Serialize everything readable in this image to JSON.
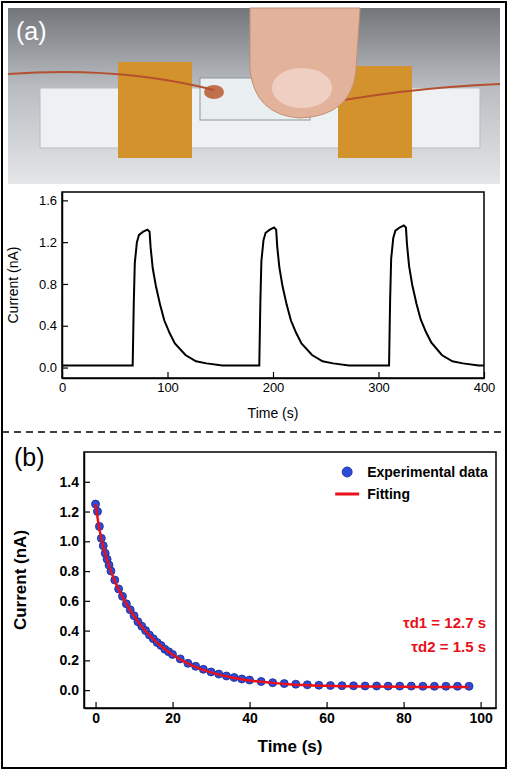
{
  "chart_data": [
    {
      "type": "line",
      "label": "(a)",
      "x_label": "Time (s)",
      "y_label": "Current (nA)",
      "color": "#000000",
      "x": [
        0,
        30,
        66,
        67,
        68,
        69,
        71,
        73,
        77,
        81,
        83,
        84,
        86,
        89,
        93,
        97,
        102,
        107,
        117,
        127,
        137,
        152,
        170,
        186,
        187,
        188,
        189,
        191,
        193,
        197,
        201,
        203,
        204,
        206,
        209,
        213,
        217,
        222,
        227,
        237,
        247,
        257,
        272,
        290,
        309,
        310,
        311,
        312,
        314,
        316,
        320,
        324,
        326,
        327,
        329,
        332,
        336,
        340,
        345,
        350,
        360,
        370,
        380,
        395,
        400
      ],
      "values": [
        0.02,
        0.02,
        0.02,
        0.02,
        0.6,
        1.0,
        1.2,
        1.27,
        1.3,
        1.32,
        1.3,
        1.15,
        0.95,
        0.78,
        0.6,
        0.45,
        0.33,
        0.23,
        0.12,
        0.06,
        0.04,
        0.02,
        0.02,
        0.02,
        0.02,
        0.62,
        1.02,
        1.22,
        1.29,
        1.32,
        1.34,
        1.32,
        1.16,
        0.96,
        0.78,
        0.6,
        0.45,
        0.33,
        0.23,
        0.12,
        0.06,
        0.04,
        0.02,
        0.02,
        0.02,
        0.02,
        0.64,
        1.04,
        1.24,
        1.31,
        1.34,
        1.36,
        1.34,
        1.18,
        0.97,
        0.79,
        0.61,
        0.46,
        0.34,
        0.24,
        0.12,
        0.06,
        0.04,
        0.02,
        0.02
      ],
      "xlim": [
        0,
        400
      ],
      "ylim": [
        -0.1,
        1.68
      ],
      "xticks": [
        0,
        100,
        200,
        300,
        400
      ],
      "yticks": [
        {
          "value": 0,
          "label": "0.0"
        },
        0.4,
        0.8,
        1.2,
        1.6
      ]
    },
    {
      "type": "scatter",
      "label": "(b)",
      "x_label": "Time (s)",
      "y_label": "Current (nA)",
      "legend": "top-right",
      "annotations": [
        "τd1 = 12.7 s",
        "τd2 = 1.5 s"
      ],
      "series": [
        {
          "name": "Experimental data",
          "type": "scatter",
          "marker": "circle",
          "color": "#2b4bd8",
          "x": [
            0,
            0.5,
            1,
            1.5,
            2,
            2.5,
            3,
            3.5,
            4,
            5,
            6,
            7,
            8,
            9,
            10,
            11,
            12,
            13,
            14,
            15,
            16,
            17,
            18,
            19,
            20,
            22,
            24,
            26,
            28,
            30,
            32,
            34,
            36,
            38,
            40,
            43,
            46,
            49,
            52,
            55,
            58,
            61,
            64,
            67,
            70,
            73,
            76,
            79,
            82,
            85,
            88,
            91,
            94,
            97
          ],
          "values": [
            1.25,
            1.2,
            1.1,
            1.02,
            0.97,
            0.92,
            0.88,
            0.84,
            0.8,
            0.74,
            0.68,
            0.63,
            0.58,
            0.54,
            0.5,
            0.46,
            0.43,
            0.4,
            0.37,
            0.345,
            0.32,
            0.3,
            0.275,
            0.258,
            0.24,
            0.21,
            0.18,
            0.16,
            0.14,
            0.122,
            0.108,
            0.095,
            0.085,
            0.075,
            0.068,
            0.058,
            0.05,
            0.044,
            0.04,
            0.036,
            0.033,
            0.031,
            0.03,
            0.029,
            0.028,
            0.028,
            0.027,
            0.027,
            0.027,
            0.026,
            0.026,
            0.026,
            0.026,
            0.026
          ]
        },
        {
          "name": "Fitting",
          "type": "line",
          "line_style": "solid",
          "color": "#e8101a",
          "x": [
            0,
            1,
            2,
            3,
            4,
            5,
            6,
            8,
            10,
            12,
            15,
            20,
            25,
            30,
            35,
            40,
            50,
            60,
            70,
            80,
            97
          ],
          "values": [
            1.25,
            1.082,
            0.964,
            0.873,
            0.798,
            0.734,
            0.678,
            0.58,
            0.498,
            0.428,
            0.342,
            0.238,
            0.167,
            0.119,
            0.087,
            0.065,
            0.04,
            0.029,
            0.024,
            0.022,
            0.021
          ]
        }
      ],
      "xlim": [
        -3,
        104
      ],
      "ylim": [
        -0.12,
        1.6
      ],
      "xticks": [
        0,
        20,
        40,
        60,
        80,
        100
      ],
      "yticks": [
        {
          "value": 0,
          "label": "0.0"
        },
        0.2,
        0.4,
        0.6,
        0.8,
        {
          "value": 1,
          "label": "1.0"
        },
        1.2,
        1.4
      ]
    }
  ]
}
